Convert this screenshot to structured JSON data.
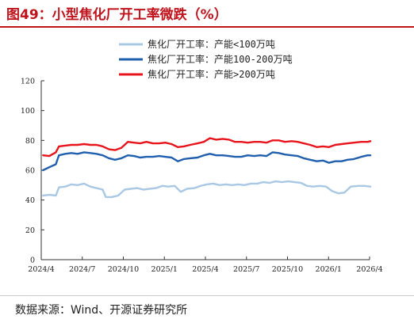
{
  "figure_title": "图49：小型焦化厂开工率微跌（%）",
  "source": "数据来源：Wind、开源证券研究所",
  "chart_data": {
    "type": "line",
    "ylim": [
      0,
      120
    ],
    "yticks": [
      0,
      20,
      40,
      60,
      80,
      100,
      120
    ],
    "xlim": [
      "2024-04",
      "2026-04"
    ],
    "xticks": [
      "2024/4",
      "2024/7",
      "2024/10",
      "2025/1",
      "2025/4",
      "2025/7",
      "2025/10",
      "2026/1",
      "2026/4"
    ],
    "grid": false,
    "legend_position": "top-center",
    "series": [
      {
        "name": "焦化厂开工率：产能<100万吨",
        "color": "#a9c8e4",
        "points": [
          [
            "2024-04-05",
            43
          ],
          [
            "2024-04-19",
            43.5
          ],
          [
            "2024-05-03",
            43
          ],
          [
            "2024-05-10",
            48.5
          ],
          [
            "2024-05-24",
            49
          ],
          [
            "2024-06-07",
            50.5
          ],
          [
            "2024-06-21",
            50
          ],
          [
            "2024-07-05",
            51
          ],
          [
            "2024-07-19",
            49
          ],
          [
            "2024-08-02",
            48
          ],
          [
            "2024-08-16",
            47
          ],
          [
            "2024-08-23",
            42
          ],
          [
            "2024-09-06",
            42
          ],
          [
            "2024-09-20",
            43
          ],
          [
            "2024-10-04",
            47
          ],
          [
            "2024-10-18",
            47.5
          ],
          [
            "2024-11-01",
            48
          ],
          [
            "2024-11-15",
            47
          ],
          [
            "2024-11-29",
            47.5
          ],
          [
            "2024-12-13",
            48
          ],
          [
            "2024-12-27",
            49.5
          ],
          [
            "2025-01-10",
            49
          ],
          [
            "2025-01-24",
            49.5
          ],
          [
            "2025-02-07",
            45.5
          ],
          [
            "2025-02-21",
            47.5
          ],
          [
            "2025-03-07",
            48
          ],
          [
            "2025-03-21",
            49.5
          ],
          [
            "2025-04-04",
            50.5
          ],
          [
            "2025-04-18",
            51
          ],
          [
            "2025-05-02",
            50
          ],
          [
            "2025-05-16",
            50.5
          ],
          [
            "2025-05-30",
            50
          ],
          [
            "2025-06-13",
            50.5
          ],
          [
            "2025-06-27",
            50
          ],
          [
            "2025-07-11",
            51
          ],
          [
            "2025-07-25",
            51
          ],
          [
            "2025-08-08",
            52
          ],
          [
            "2025-08-22",
            51.5
          ],
          [
            "2025-09-05",
            52.5
          ],
          [
            "2025-09-19",
            52
          ],
          [
            "2025-10-03",
            52.5
          ],
          [
            "2025-10-17",
            52
          ],
          [
            "2025-10-31",
            51.5
          ],
          [
            "2025-11-14",
            49.5
          ],
          [
            "2025-11-28",
            49
          ],
          [
            "2025-12-12",
            49.5
          ],
          [
            "2025-12-26",
            49
          ],
          [
            "2026-01-09",
            46
          ],
          [
            "2026-01-23",
            44.5
          ],
          [
            "2026-02-06",
            45
          ],
          [
            "2026-02-20",
            49
          ],
          [
            "2026-03-06",
            49.5
          ],
          [
            "2026-03-20",
            49.5
          ],
          [
            "2026-04-03",
            49
          ]
        ]
      },
      {
        "name": "焦化厂开工率：产能100-200万吨",
        "color": "#1f5fae",
        "points": [
          [
            "2024-04-05",
            60
          ],
          [
            "2024-04-19",
            62
          ],
          [
            "2024-05-03",
            64
          ],
          [
            "2024-05-10",
            70
          ],
          [
            "2024-05-24",
            71
          ],
          [
            "2024-06-07",
            71.5
          ],
          [
            "2024-06-21",
            71
          ],
          [
            "2024-07-05",
            72
          ],
          [
            "2024-07-19",
            71.5
          ],
          [
            "2024-08-02",
            71
          ],
          [
            "2024-08-16",
            70
          ],
          [
            "2024-08-30",
            68
          ],
          [
            "2024-09-13",
            67
          ],
          [
            "2024-09-27",
            68
          ],
          [
            "2024-10-11",
            70
          ],
          [
            "2024-10-25",
            69.5
          ],
          [
            "2024-11-08",
            68.5
          ],
          [
            "2024-11-22",
            69
          ],
          [
            "2024-12-06",
            69
          ],
          [
            "2024-12-20",
            69.5
          ],
          [
            "2025-01-03",
            69
          ],
          [
            "2025-01-17",
            68.5
          ],
          [
            "2025-01-31",
            66
          ],
          [
            "2025-02-14",
            67.5
          ],
          [
            "2025-02-28",
            68
          ],
          [
            "2025-03-14",
            68.5
          ],
          [
            "2025-03-28",
            70
          ],
          [
            "2025-04-11",
            71
          ],
          [
            "2025-04-25",
            70
          ],
          [
            "2025-05-09",
            70
          ],
          [
            "2025-05-23",
            69.5
          ],
          [
            "2025-06-06",
            69
          ],
          [
            "2025-06-20",
            69
          ],
          [
            "2025-07-04",
            70
          ],
          [
            "2025-07-18",
            69.5
          ],
          [
            "2025-08-01",
            70
          ],
          [
            "2025-08-15",
            69.5
          ],
          [
            "2025-08-29",
            72
          ],
          [
            "2025-09-12",
            71.5
          ],
          [
            "2025-09-26",
            70.5
          ],
          [
            "2025-10-10",
            70
          ],
          [
            "2025-10-24",
            69.5
          ],
          [
            "2025-11-07",
            68
          ],
          [
            "2025-11-21",
            67
          ],
          [
            "2025-12-05",
            66
          ],
          [
            "2025-12-19",
            66.5
          ],
          [
            "2026-01-02",
            65
          ],
          [
            "2026-01-16",
            66
          ],
          [
            "2026-01-30",
            66
          ],
          [
            "2026-02-13",
            67
          ],
          [
            "2026-02-27",
            67.5
          ],
          [
            "2026-03-13",
            69
          ],
          [
            "2026-03-27",
            70
          ],
          [
            "2026-04-03",
            70
          ]
        ]
      },
      {
        "name": "焦化厂开工率：产能>200万吨",
        "color": "#e8141c",
        "points": [
          [
            "2024-04-05",
            70
          ],
          [
            "2024-04-19",
            69.5
          ],
          [
            "2024-05-03",
            72
          ],
          [
            "2024-05-10",
            76
          ],
          [
            "2024-05-24",
            76.5
          ],
          [
            "2024-06-07",
            77
          ],
          [
            "2024-06-21",
            77
          ],
          [
            "2024-07-05",
            77.5
          ],
          [
            "2024-07-19",
            77
          ],
          [
            "2024-08-02",
            77
          ],
          [
            "2024-08-16",
            76
          ],
          [
            "2024-08-30",
            74
          ],
          [
            "2024-09-13",
            73.5
          ],
          [
            "2024-09-27",
            75
          ],
          [
            "2024-10-11",
            79
          ],
          [
            "2024-10-25",
            78.5
          ],
          [
            "2024-11-08",
            78
          ],
          [
            "2024-11-22",
            79
          ],
          [
            "2024-12-06",
            78
          ],
          [
            "2024-12-20",
            78
          ],
          [
            "2025-01-03",
            78.5
          ],
          [
            "2025-01-17",
            77.5
          ],
          [
            "2025-01-31",
            75.5
          ],
          [
            "2025-02-14",
            76
          ],
          [
            "2025-02-28",
            77
          ],
          [
            "2025-03-14",
            78
          ],
          [
            "2025-03-28",
            79
          ],
          [
            "2025-04-11",
            81.5
          ],
          [
            "2025-04-25",
            80.5
          ],
          [
            "2025-05-09",
            81
          ],
          [
            "2025-05-23",
            80.5
          ],
          [
            "2025-06-06",
            79
          ],
          [
            "2025-06-20",
            79
          ],
          [
            "2025-07-04",
            78.5
          ],
          [
            "2025-07-18",
            79
          ],
          [
            "2025-08-01",
            79
          ],
          [
            "2025-08-15",
            78.5
          ],
          [
            "2025-08-29",
            80
          ],
          [
            "2025-09-12",
            80
          ],
          [
            "2025-09-26",
            79
          ],
          [
            "2025-10-10",
            79.5
          ],
          [
            "2025-10-24",
            79
          ],
          [
            "2025-11-07",
            78
          ],
          [
            "2025-11-21",
            77
          ],
          [
            "2025-12-05",
            75.5
          ],
          [
            "2025-12-19",
            76
          ],
          [
            "2026-01-02",
            75.5
          ],
          [
            "2026-01-16",
            77
          ],
          [
            "2026-01-30",
            77.5
          ],
          [
            "2026-02-13",
            78
          ],
          [
            "2026-02-27",
            78.5
          ],
          [
            "2026-03-13",
            79
          ],
          [
            "2026-03-27",
            79
          ],
          [
            "2026-04-03",
            79.5
          ]
        ]
      }
    ]
  }
}
